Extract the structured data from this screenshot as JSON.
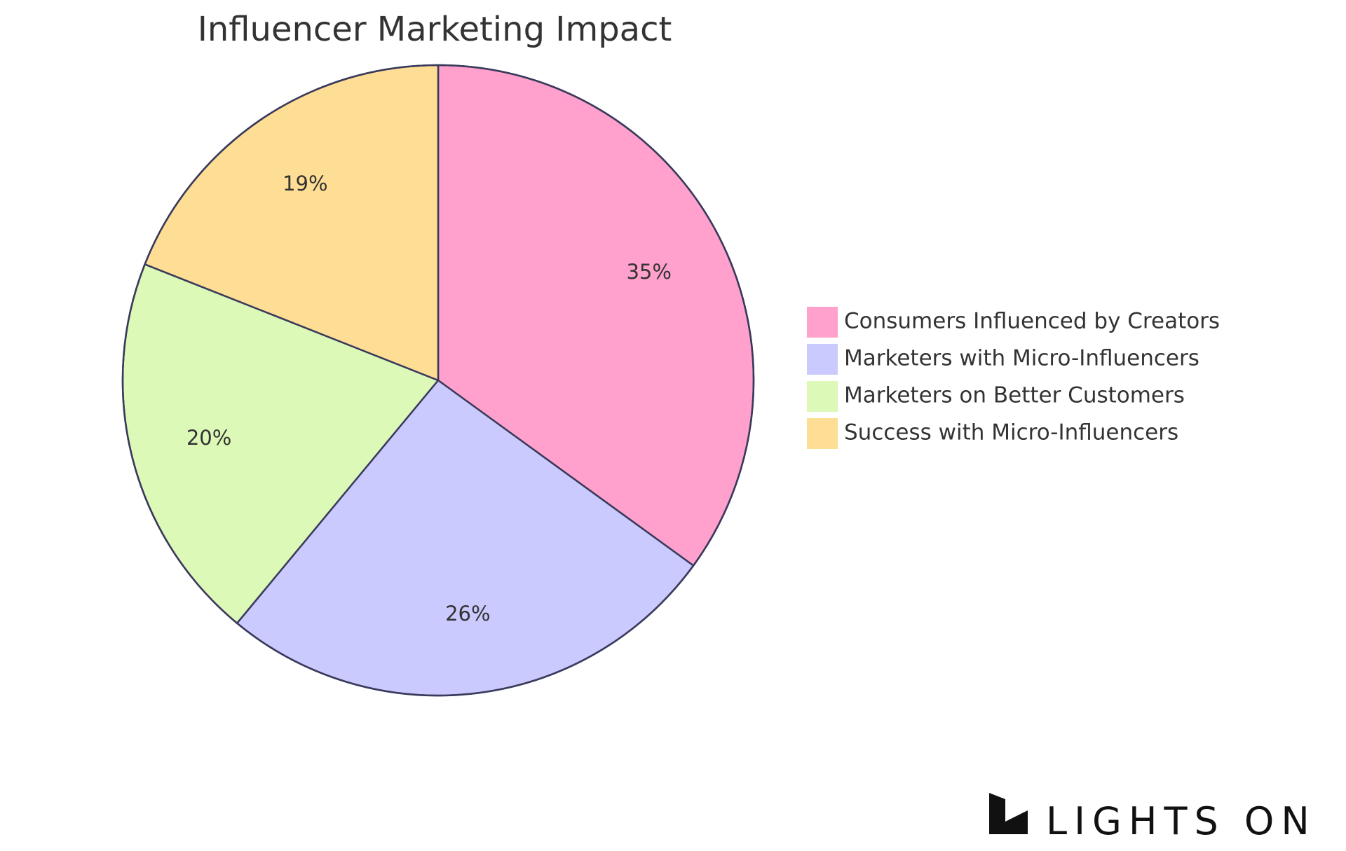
{
  "chart_data": {
    "type": "pie",
    "title": "Influencer Marketing Impact",
    "slices": [
      {
        "label": "Consumers Influenced by Creators",
        "value": 35,
        "display": "35%",
        "color": "#FFA1CC"
      },
      {
        "label": "Marketers with Micro-Influencers",
        "value": 26,
        "display": "26%",
        "color": "#CACAFF"
      },
      {
        "label": "Marketers on Better Customers",
        "value": 20,
        "display": "20%",
        "color": "#DCF9B7"
      },
      {
        "label": "Success with Micro-Influencers",
        "value": 19,
        "display": "19%",
        "color": "#FEDE95"
      }
    ],
    "legend_position": "right",
    "slice_border_color": "#3A3A5C"
  },
  "brand": {
    "logo_text": "LIGHTS ON",
    "logo_icon": "lights-on-logo-icon"
  }
}
